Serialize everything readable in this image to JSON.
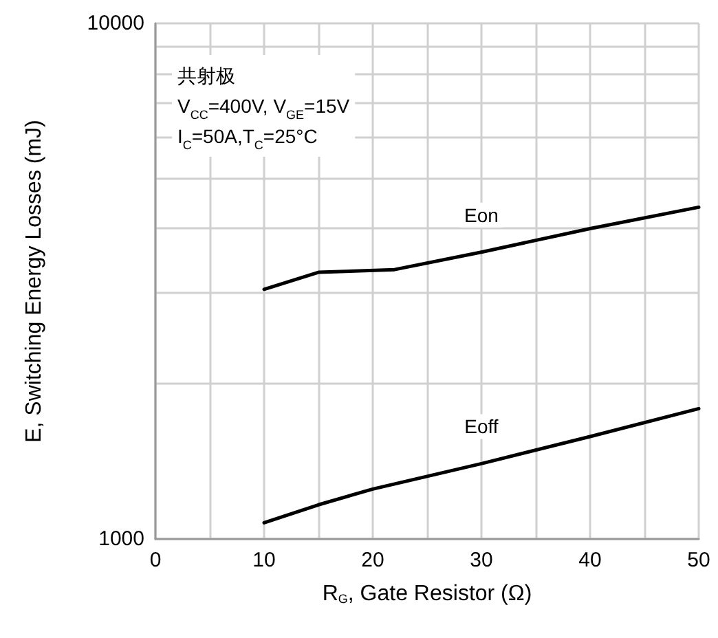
{
  "chart_data": {
    "type": "line",
    "xlabel": "R$_{G}$, Gate Resistor (Ω)",
    "ylabel": "E, Switching Energy Losses (mJ)",
    "annotations": [
      "共射极",
      "V$_{CC}$=400V, V$_{GE}$=15V",
      "I$_{C}$=50A,T$_{C}$=25°C"
    ],
    "series": [
      {
        "name": "Eon",
        "color": "#000000",
        "x": [
          10,
          15,
          22,
          30,
          40,
          50
        ],
        "values": [
          3050,
          3290,
          3330,
          3600,
          4000,
          4400
        ]
      },
      {
        "name": "Eoff",
        "color": "#000000",
        "x": [
          10,
          15,
          20,
          30,
          40,
          50
        ],
        "values": [
          1075,
          1165,
          1250,
          1400,
          1580,
          1790
        ]
      }
    ],
    "xlim": [
      0,
      50
    ],
    "xticks": [
      0,
      {
        "value": 5,
        "label": null
      },
      10,
      {
        "value": 15,
        "label": null
      },
      20,
      {
        "value": 25,
        "label": null
      },
      30,
      {
        "value": 35,
        "label": null
      },
      40,
      {
        "value": 45,
        "label": null
      },
      50
    ],
    "ylim": [
      1000,
      10000
    ],
    "yticks": [
      1000,
      {
        "value": 2000,
        "label": null
      },
      {
        "value": 3000,
        "label": null
      },
      {
        "value": 4000,
        "label": null
      },
      {
        "value": 5000,
        "label": null
      },
      {
        "value": 6000,
        "label": null
      },
      {
        "value": 7000,
        "label": null
      },
      {
        "value": 8000,
        "label": null
      },
      {
        "value": 9000,
        "label": null
      },
      10000
    ],
    "log": true,
    "grid": true,
    "legend": false,
    "marker": "none",
    "line_style": "solid"
  }
}
